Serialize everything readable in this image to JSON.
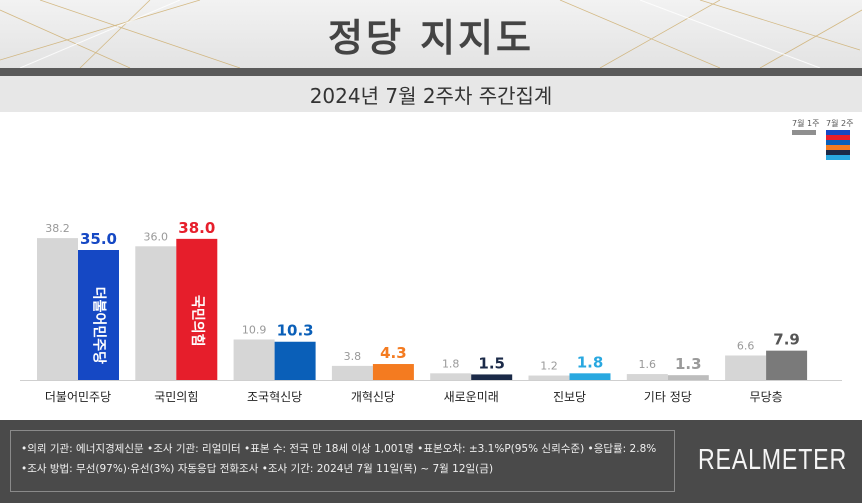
{
  "header": {
    "title": "정당 지지도"
  },
  "subtitle": "2024년 7월 2주차 주간집계",
  "legend": {
    "prev_label": "7월 1주",
    "curr_label": "7월 2주"
  },
  "chart_data": {
    "type": "bar",
    "categories": [
      "더불어민주당",
      "국민의힘",
      "조국혁신당",
      "개혁신당",
      "새로운미래",
      "진보당",
      "기타 정당",
      "무당층"
    ],
    "series": [
      {
        "name": "7월 1주",
        "values": [
          38.2,
          36.0,
          10.9,
          3.8,
          1.8,
          1.2,
          1.6,
          6.6
        ]
      },
      {
        "name": "7월 2주",
        "values": [
          35.0,
          38.0,
          10.3,
          4.3,
          1.5,
          1.8,
          1.3,
          7.9
        ]
      }
    ],
    "prev_labels": [
      "38.2",
      "36.0",
      "10.9",
      "3.8",
      "1.8",
      "1.2",
      "1.6",
      "6.6"
    ],
    "curr_labels": [
      "35.0",
      "38.0",
      "10.3",
      "4.3",
      "1.5",
      "1.8",
      "1.3",
      "7.9"
    ],
    "prev_color": "#d6d6d6",
    "curr_colors": [
      "#1548c4",
      "#e61e2b",
      "#0a5fb8",
      "#f47b20",
      "#1b2a48",
      "#29a8e0",
      "#bdbdbd",
      "#7a7a7a"
    ],
    "label_colors": [
      "#1548c4",
      "#e61e2b",
      "#0a5fb8",
      "#f47b20",
      "#1b2a48",
      "#29a8e0",
      "#9a9a9a",
      "#555555"
    ],
    "bar_text": [
      "더불어민주당",
      "국민의힘"
    ],
    "ylim": [
      0,
      40
    ]
  },
  "footer": {
    "line1": "•의뢰 기관: 에너지경제신문  •조사 기관: 리얼미터 •표본 수: 전국 만 18세 이상 1,001명 •표본오차: ±3.1%P(95% 신뢰수준) •응답률: 2.8%",
    "line2": "•조사 방법: 무선(97%)·유선(3%) 자동응답 전화조사 •조사 기간: 2024년 7월 11일(목) ~ 7월 12일(금)",
    "brand": "REALMETER"
  },
  "colors": {
    "legend_stack": [
      "#1548c4",
      "#e61e2b",
      "#0a5fb8",
      "#f47b20",
      "#1b2a48",
      "#29a8e0"
    ]
  }
}
